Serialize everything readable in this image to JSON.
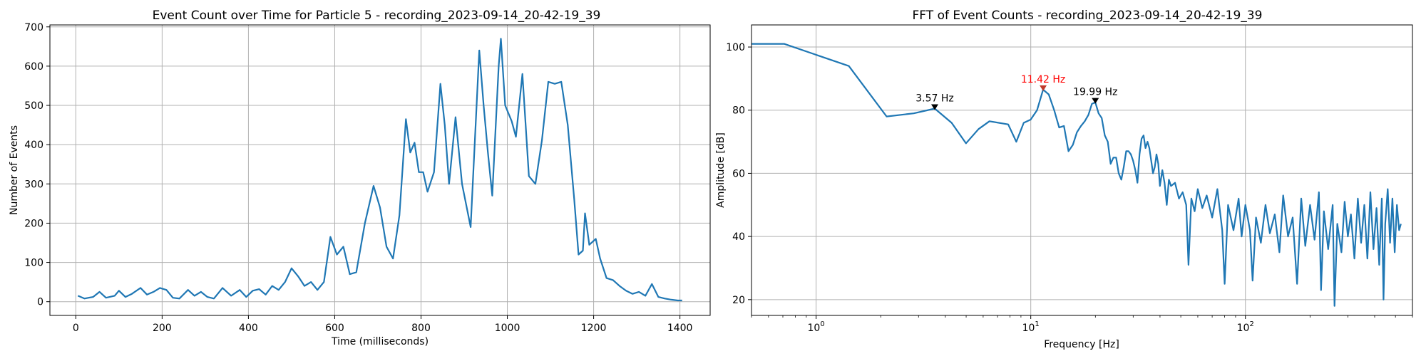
{
  "chart_data": [
    {
      "type": "line",
      "title": "Event Count over Time for Particle 5 - recording_2023-09-14_20-42-19_39",
      "xlabel": "Time (milliseconds)",
      "ylabel": "Number of Events",
      "xlim": [
        -60,
        1470
      ],
      "ylim": [
        -35,
        705
      ],
      "xticks": [
        0,
        200,
        400,
        600,
        800,
        1000,
        1200,
        1400
      ],
      "yticks": [
        0,
        100,
        200,
        300,
        400,
        500,
        600,
        700
      ],
      "grid": true,
      "series": [
        {
          "color": "#1f77b4",
          "points": [
            [
              5,
              15
            ],
            [
              20,
              8
            ],
            [
              40,
              12
            ],
            [
              55,
              25
            ],
            [
              70,
              10
            ],
            [
              90,
              15
            ],
            [
              100,
              28
            ],
            [
              115,
              12
            ],
            [
              130,
              20
            ],
            [
              150,
              35
            ],
            [
              165,
              18
            ],
            [
              180,
              25
            ],
            [
              195,
              35
            ],
            [
              210,
              30
            ],
            [
              225,
              10
            ],
            [
              240,
              8
            ],
            [
              260,
              30
            ],
            [
              275,
              15
            ],
            [
              290,
              25
            ],
            [
              305,
              12
            ],
            [
              320,
              8
            ],
            [
              340,
              35
            ],
            [
              360,
              15
            ],
            [
              380,
              30
            ],
            [
              395,
              12
            ],
            [
              410,
              28
            ],
            [
              425,
              32
            ],
            [
              440,
              18
            ],
            [
              455,
              40
            ],
            [
              470,
              30
            ],
            [
              485,
              50
            ],
            [
              500,
              85
            ],
            [
              515,
              65
            ],
            [
              530,
              40
            ],
            [
              545,
              50
            ],
            [
              560,
              30
            ],
            [
              575,
              50
            ],
            [
              590,
              165
            ],
            [
              605,
              120
            ],
            [
              620,
              140
            ],
            [
              635,
              70
            ],
            [
              650,
              75
            ],
            [
              670,
              200
            ],
            [
              690,
              295
            ],
            [
              705,
              240
            ],
            [
              720,
              140
            ],
            [
              735,
              110
            ],
            [
              750,
              220
            ],
            [
              765,
              465
            ],
            [
              775,
              380
            ],
            [
              785,
              405
            ],
            [
              795,
              330
            ],
            [
              805,
              330
            ],
            [
              815,
              280
            ],
            [
              830,
              330
            ],
            [
              845,
              555
            ],
            [
              855,
              450
            ],
            [
              865,
              300
            ],
            [
              880,
              470
            ],
            [
              895,
              300
            ],
            [
              915,
              190
            ],
            [
              935,
              640
            ],
            [
              945,
              500
            ],
            [
              955,
              380
            ],
            [
              965,
              270
            ],
            [
              980,
              600
            ],
            [
              985,
              670
            ],
            [
              995,
              500
            ],
            [
              1010,
              460
            ],
            [
              1020,
              420
            ],
            [
              1035,
              580
            ],
            [
              1050,
              320
            ],
            [
              1065,
              300
            ],
            [
              1080,
              410
            ],
            [
              1095,
              560
            ],
            [
              1110,
              555
            ],
            [
              1125,
              560
            ],
            [
              1140,
              450
            ],
            [
              1155,
              260
            ],
            [
              1165,
              120
            ],
            [
              1175,
              130
            ],
            [
              1180,
              225
            ],
            [
              1190,
              145
            ],
            [
              1205,
              160
            ],
            [
              1215,
              110
            ],
            [
              1230,
              60
            ],
            [
              1245,
              55
            ],
            [
              1260,
              40
            ],
            [
              1275,
              28
            ],
            [
              1290,
              20
            ],
            [
              1305,
              25
            ],
            [
              1320,
              15
            ],
            [
              1335,
              45
            ],
            [
              1350,
              12
            ],
            [
              1365,
              8
            ],
            [
              1380,
              5
            ],
            [
              1395,
              3
            ],
            [
              1405,
              3
            ]
          ]
        }
      ]
    },
    {
      "type": "line",
      "title": "FFT of Event Counts - recording_2023-09-14_20-42-19_39",
      "xlabel": "Frequency [Hz]",
      "ylabel": "Amplitude [dB]",
      "xscale": "log",
      "xlim": [
        0.5,
        600
      ],
      "ylim": [
        15,
        107
      ],
      "xticks": [
        1,
        10,
        100
      ],
      "xtick_labels": [
        "10",
        "10",
        "10"
      ],
      "xtick_exponents": [
        "0",
        "1",
        "2"
      ],
      "yticks": [
        20,
        40,
        60,
        80,
        100
      ],
      "grid": true,
      "series": [
        {
          "color": "#1f77b4",
          "points": [
            [
              0.5,
              101
            ],
            [
              0.71,
              101
            ],
            [
              1.42,
              94
            ],
            [
              2.13,
              78
            ],
            [
              2.85,
              79
            ],
            [
              3.57,
              80.5
            ],
            [
              4.28,
              76
            ],
            [
              4.99,
              69.5
            ],
            [
              5.71,
              74
            ],
            [
              6.42,
              76.5
            ],
            [
              7.85,
              75.5
            ],
            [
              8.56,
              70
            ],
            [
              9.27,
              76
            ],
            [
              9.99,
              77
            ],
            [
              10.7,
              80
            ],
            [
              11.42,
              86.5
            ],
            [
              12.13,
              85
            ],
            [
              12.85,
              80
            ],
            [
              13.56,
              74.5
            ],
            [
              14.27,
              75
            ],
            [
              14.99,
              67
            ],
            [
              15.7,
              69
            ],
            [
              16.41,
              73
            ],
            [
              17.13,
              75
            ],
            [
              17.84,
              76.5
            ],
            [
              18.55,
              78.5
            ],
            [
              19.27,
              82
            ],
            [
              19.99,
              82.5
            ],
            [
              20.7,
              79
            ],
            [
              21.41,
              77.5
            ],
            [
              22.13,
              72
            ],
            [
              22.84,
              70
            ],
            [
              23.55,
              63
            ],
            [
              24.27,
              65
            ],
            [
              24.98,
              65
            ],
            [
              25.69,
              60
            ],
            [
              26.41,
              58
            ],
            [
              27.12,
              62
            ],
            [
              27.83,
              67
            ],
            [
              28.55,
              67
            ],
            [
              29.26,
              66
            ],
            [
              29.97,
              64
            ],
            [
              30.69,
              61
            ],
            [
              31.4,
              57
            ],
            [
              32.11,
              66
            ],
            [
              32.83,
              71
            ],
            [
              33.54,
              72
            ],
            [
              34.25,
              68
            ],
            [
              34.97,
              70
            ],
            [
              35.68,
              68
            ],
            [
              36.39,
              64
            ],
            [
              37.11,
              60
            ],
            [
              37.82,
              62
            ],
            [
              38.53,
              66
            ],
            [
              39.25,
              63
            ],
            [
              39.96,
              56
            ],
            [
              41.0,
              61
            ],
            [
              42.0,
              57
            ],
            [
              43.0,
              50
            ],
            [
              44.0,
              58
            ],
            [
              45.0,
              56
            ],
            [
              47.0,
              57
            ],
            [
              49.0,
              52
            ],
            [
              51.0,
              54
            ],
            [
              53.0,
              50
            ],
            [
              54.3,
              31
            ],
            [
              56.0,
              52
            ],
            [
              58.0,
              48
            ],
            [
              60.0,
              55
            ],
            [
              63.0,
              49
            ],
            [
              66.0,
              53
            ],
            [
              70.0,
              46
            ],
            [
              74.0,
              55
            ],
            [
              78.0,
              42
            ],
            [
              80.0,
              25
            ],
            [
              83.0,
              50
            ],
            [
              88.0,
              42
            ],
            [
              93.0,
              52
            ],
            [
              96.0,
              40
            ],
            [
              100.0,
              50
            ],
            [
              105.0,
              42
            ],
            [
              108.0,
              26
            ],
            [
              112.0,
              46
            ],
            [
              118.0,
              38
            ],
            [
              124.0,
              50
            ],
            [
              130.0,
              41
            ],
            [
              137.0,
              47
            ],
            [
              144.0,
              35
            ],
            [
              150.0,
              53
            ],
            [
              158.0,
              40
            ],
            [
              166.0,
              46
            ],
            [
              174.0,
              25
            ],
            [
              182.0,
              52
            ],
            [
              190.0,
              37
            ],
            [
              200.0,
              50
            ],
            [
              210.0,
              39
            ],
            [
              220.0,
              54
            ],
            [
              225.0,
              23
            ],
            [
              232.0,
              48
            ],
            [
              243.0,
              36
            ],
            [
              255.0,
              50
            ],
            [
              260.0,
              18
            ],
            [
              268.0,
              44
            ],
            [
              280.0,
              35
            ],
            [
              290.0,
              51
            ],
            [
              300.0,
              40
            ],
            [
              310.0,
              47
            ],
            [
              322.0,
              33
            ],
            [
              334.0,
              52
            ],
            [
              346.0,
              38
            ],
            [
              358.0,
              50
            ],
            [
              370.0,
              33
            ],
            [
              382.0,
              54
            ],
            [
              395.0,
              36
            ],
            [
              408.0,
              49
            ],
            [
              420.0,
              31
            ],
            [
              432.0,
              52
            ],
            [
              440.0,
              20
            ],
            [
              448.0,
              44
            ],
            [
              460.0,
              55
            ],
            [
              472.0,
              38
            ],
            [
              484.0,
              52
            ],
            [
              496.0,
              35
            ],
            [
              508.0,
              50
            ],
            [
              520.0,
              42
            ],
            [
              530.0,
              44
            ]
          ]
        }
      ],
      "annotations": [
        {
          "x": 3.57,
          "y": 80.5,
          "text": "3.57 Hz",
          "color": "#000000"
        },
        {
          "x": 11.42,
          "y": 86.5,
          "text": "11.42 Hz",
          "color": "#ff0000"
        },
        {
          "x": 19.99,
          "y": 82.5,
          "text": "19.99 Hz",
          "color": "#000000"
        }
      ]
    }
  ]
}
